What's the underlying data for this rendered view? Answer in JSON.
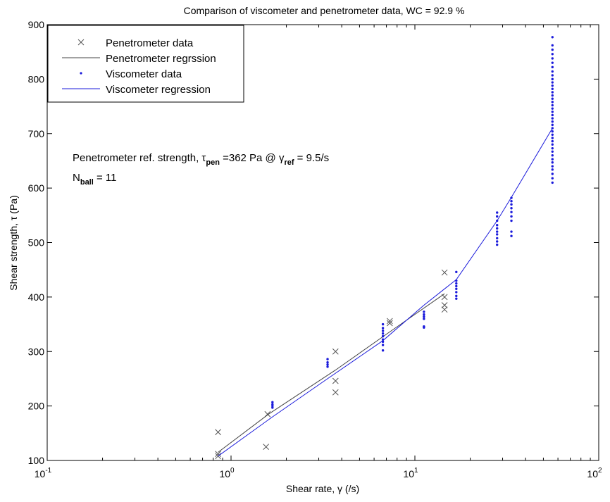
{
  "chart_data": {
    "type": "scatter",
    "title": "Comparison of viscometer and penetrometer data, WC = 92.9 %",
    "xlabel": "Shear rate, γ (/s)",
    "ylabel": "Shear strength, τ (Pa)",
    "xscale": "log",
    "xlim": [
      0.1,
      100
    ],
    "ylim": [
      100,
      900
    ],
    "xticks": [
      {
        "value": 0.1,
        "base": "10",
        "exp": "-1"
      },
      {
        "value": 1,
        "base": "10",
        "exp": "0"
      },
      {
        "value": 10,
        "base": "10",
        "exp": "1"
      },
      {
        "value": 100,
        "base": "10",
        "exp": "2"
      }
    ],
    "yticks": [
      100,
      200,
      300,
      400,
      500,
      600,
      700,
      800,
      900
    ],
    "grid": false,
    "legend_position": "top-left",
    "legend": [
      {
        "label": "Penetrometer data",
        "marker": "x",
        "color": "#555555"
      },
      {
        "label": "Penetrometer regrssion",
        "marker": "line",
        "color": "#444444"
      },
      {
        "label": "Viscometer data",
        "marker": "dot",
        "color": "#1a1adb"
      },
      {
        "label": "Viscometer regression",
        "marker": "line",
        "color": "#1a1adb"
      }
    ],
    "annotations": {
      "line1_prefix": "Penetrometer ref. strength, τ",
      "line1_sub1": "pen",
      "line1_mid": " =362 Pa @ γ",
      "line1_sub2": "ref",
      "line1_suffix": " = 9.5/s",
      "line2_prefix": "N",
      "line2_sub": "ball",
      "line2_suffix": " = 11"
    },
    "series": [
      {
        "name": "Penetrometer data",
        "kind": "scatter",
        "marker": "x",
        "color": "#555555",
        "points": [
          [
            0.85,
            152
          ],
          [
            0.85,
            112
          ],
          [
            0.85,
            108
          ],
          [
            1.55,
            125
          ],
          [
            1.58,
            185
          ],
          [
            3.7,
            300
          ],
          [
            3.7,
            246
          ],
          [
            3.7,
            225
          ],
          [
            7.3,
            352
          ],
          [
            7.3,
            356
          ],
          [
            14.5,
            445
          ],
          [
            14.5,
            400
          ],
          [
            14.5,
            385
          ],
          [
            14.5,
            377
          ]
        ]
      },
      {
        "name": "Penetrometer regrssion",
        "kind": "line",
        "color": "#444444",
        "points": [
          [
            0.85,
            115
          ],
          [
            1.6,
            185
          ],
          [
            3.7,
            266
          ],
          [
            7.3,
            336
          ],
          [
            14.5,
            406
          ]
        ]
      },
      {
        "name": "Viscometer data",
        "kind": "scatter",
        "marker": "dot",
        "color": "#1a1adb",
        "points": [
          [
            1.68,
            197
          ],
          [
            1.68,
            200
          ],
          [
            1.68,
            203
          ],
          [
            1.68,
            207
          ],
          [
            3.35,
            272
          ],
          [
            3.35,
            276
          ],
          [
            3.35,
            280
          ],
          [
            3.35,
            286
          ],
          [
            6.7,
            302
          ],
          [
            6.7,
            312
          ],
          [
            6.7,
            318
          ],
          [
            6.7,
            322
          ],
          [
            6.7,
            328
          ],
          [
            6.7,
            333
          ],
          [
            6.7,
            338
          ],
          [
            6.7,
            343
          ],
          [
            6.7,
            350
          ],
          [
            11.2,
            344
          ],
          [
            11.2,
            346
          ],
          [
            11.2,
            360
          ],
          [
            11.2,
            364
          ],
          [
            11.2,
            368
          ],
          [
            11.2,
            373
          ],
          [
            16.8,
            397
          ],
          [
            16.8,
            402
          ],
          [
            16.8,
            409
          ],
          [
            16.8,
            415
          ],
          [
            16.8,
            420
          ],
          [
            16.8,
            425
          ],
          [
            16.8,
            430
          ],
          [
            16.8,
            446
          ],
          [
            28,
            496
          ],
          [
            28,
            502
          ],
          [
            28,
            508
          ],
          [
            28,
            515
          ],
          [
            28,
            520
          ],
          [
            28,
            526
          ],
          [
            28,
            532
          ],
          [
            28,
            540
          ],
          [
            28,
            548
          ],
          [
            28,
            555
          ],
          [
            33.5,
            512
          ],
          [
            33.5,
            520
          ],
          [
            33.5,
            540
          ],
          [
            33.5,
            548
          ],
          [
            33.5,
            556
          ],
          [
            33.5,
            563
          ],
          [
            33.5,
            570
          ],
          [
            33.5,
            576
          ],
          [
            33.5,
            582
          ],
          [
            56,
            610
          ],
          [
            56,
            618
          ],
          [
            56,
            626
          ],
          [
            56,
            634
          ],
          [
            56,
            640
          ],
          [
            56,
            647
          ],
          [
            56,
            653
          ],
          [
            56,
            660
          ],
          [
            56,
            667
          ],
          [
            56,
            673
          ],
          [
            56,
            680
          ],
          [
            56,
            686
          ],
          [
            56,
            692
          ],
          [
            56,
            698
          ],
          [
            56,
            704
          ],
          [
            56,
            710
          ],
          [
            56,
            716
          ],
          [
            56,
            722
          ],
          [
            56,
            728
          ],
          [
            56,
            734
          ],
          [
            56,
            740
          ],
          [
            56,
            746
          ],
          [
            56,
            752
          ],
          [
            56,
            758
          ],
          [
            56,
            764
          ],
          [
            56,
            770
          ],
          [
            56,
            776
          ],
          [
            56,
            782
          ],
          [
            56,
            788
          ],
          [
            56,
            794
          ],
          [
            56,
            800
          ],
          [
            56,
            807
          ],
          [
            56,
            814
          ],
          [
            56,
            822
          ],
          [
            56,
            830
          ],
          [
            56,
            838
          ],
          [
            56,
            846
          ],
          [
            56,
            854
          ],
          [
            56,
            862
          ],
          [
            56,
            877
          ]
        ]
      },
      {
        "name": "Viscometer regression",
        "kind": "line",
        "color": "#1a1adb",
        "points": [
          [
            0.85,
            108
          ],
          [
            1.68,
            180
          ],
          [
            3.35,
            250
          ],
          [
            6.7,
            320
          ],
          [
            11.2,
            385
          ],
          [
            16.8,
            432
          ],
          [
            28,
            540
          ],
          [
            33.5,
            583
          ],
          [
            56,
            710
          ]
        ]
      }
    ]
  }
}
